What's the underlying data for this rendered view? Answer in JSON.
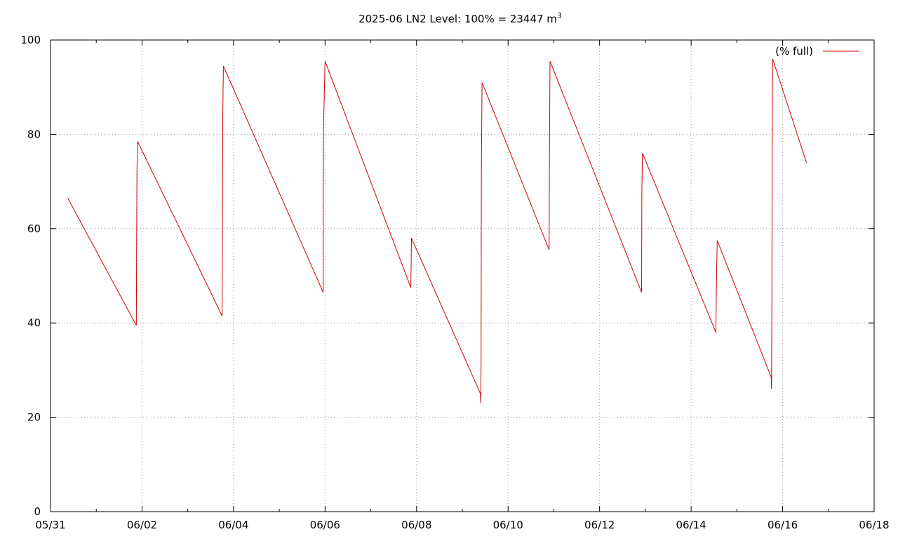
{
  "chart_data": {
    "type": "line",
    "title_main": "2025-06 LN2 Level: 100% = 23447 m",
    "title_sup": "3",
    "xlabel": "",
    "ylabel": "",
    "x_unit": "date",
    "xlim": [
      "2025-05-31",
      "2025-06-18"
    ],
    "ylim": [
      0,
      100
    ],
    "x_ticks": [
      "05/31",
      "06/02",
      "06/04",
      "06/06",
      "06/08",
      "06/10",
      "06/12",
      "06/14",
      "06/16",
      "06/18"
    ],
    "y_ticks": [
      "0",
      "20",
      "40",
      "60",
      "80",
      "100"
    ],
    "grid": true,
    "legend_position": "top-right",
    "series": [
      {
        "name": "(% full)",
        "color": "#cc0000",
        "points": [
          [
            "2025-05-31T09:00",
            66.5
          ],
          [
            "2025-06-01T21:00",
            39.5
          ],
          [
            "2025-06-01T21:20",
            72
          ],
          [
            "2025-06-01T21:40",
            78.5
          ],
          [
            "2025-06-03T18:00",
            41.5
          ],
          [
            "2025-06-03T18:20",
            83
          ],
          [
            "2025-06-03T18:40",
            94.5
          ],
          [
            "2025-06-05T23:00",
            46.5
          ],
          [
            "2025-06-05T23:10",
            81
          ],
          [
            "2025-06-06T00:00",
            95.5
          ],
          [
            "2025-06-07T21:00",
            47.5
          ],
          [
            "2025-06-07T21:20",
            58
          ],
          [
            "2025-06-09T09:30",
            25
          ],
          [
            "2025-06-09T09:40",
            23
          ],
          [
            "2025-06-09T09:50",
            32
          ],
          [
            "2025-06-09T10:00",
            73
          ],
          [
            "2025-06-09T10:20",
            91
          ],
          [
            "2025-06-10T21:30",
            55.5
          ],
          [
            "2025-06-10T21:45",
            79
          ],
          [
            "2025-06-10T22:00",
            95.5
          ],
          [
            "2025-06-12T22:00",
            46.5
          ],
          [
            "2025-06-12T22:10",
            68
          ],
          [
            "2025-06-12T22:30",
            76
          ],
          [
            "2025-06-14T13:00",
            38
          ],
          [
            "2025-06-14T13:20",
            49.5
          ],
          [
            "2025-06-14T13:40",
            57.5
          ],
          [
            "2025-06-15T18:00",
            28.5
          ],
          [
            "2025-06-15T18:10",
            26
          ],
          [
            "2025-06-15T18:20",
            42
          ],
          [
            "2025-06-15T18:30",
            75
          ],
          [
            "2025-06-15T18:45",
            96
          ],
          [
            "2025-06-16T12:30",
            74
          ]
        ]
      }
    ]
  }
}
